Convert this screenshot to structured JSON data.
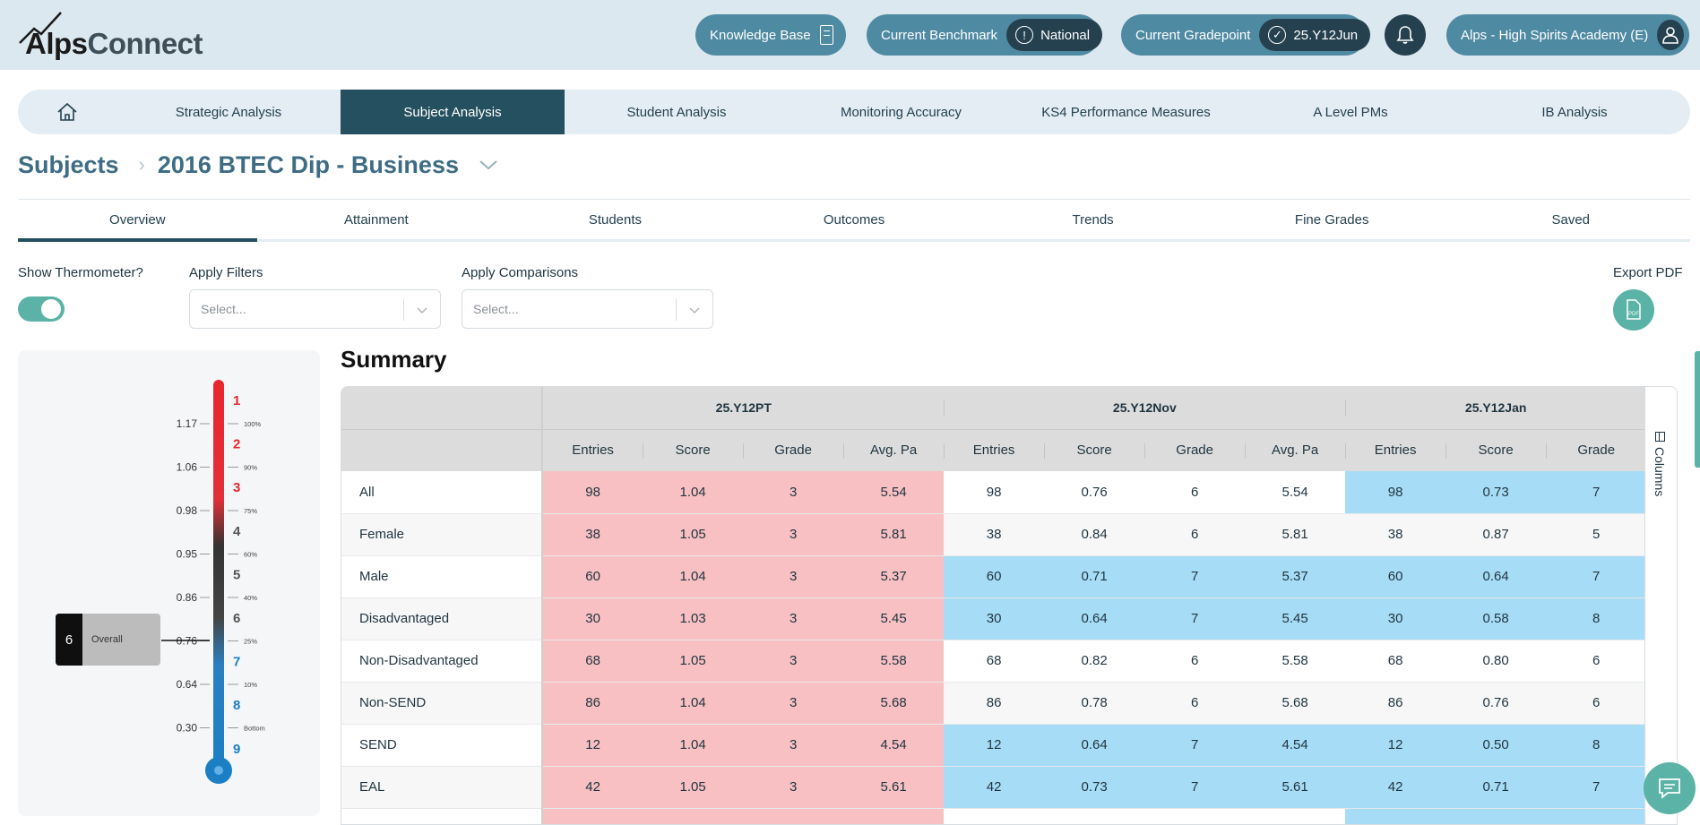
{
  "header": {
    "logo": {
      "alps": "Alps",
      "connect": "Connect"
    },
    "knowledge_base": "Knowledge Base",
    "benchmark_label": "Current Benchmark",
    "benchmark_value": "National",
    "gradepoint_label": "Current Gradepoint",
    "gradepoint_value": "25.Y12Jun",
    "school": "Alps - High Spirits Academy (E)"
  },
  "nav": {
    "items": [
      {
        "label": "Strategic Analysis"
      },
      {
        "label": "Subject Analysis"
      },
      {
        "label": "Student Analysis"
      },
      {
        "label": "Monitoring Accuracy"
      },
      {
        "label": "KS4 Performance Measures"
      },
      {
        "label": "A Level PMs"
      },
      {
        "label": "IB Analysis"
      }
    ],
    "active": "Subject Analysis"
  },
  "breadcrumb": {
    "root": "Subjects",
    "current": "2016 BTEC Dip - Business"
  },
  "subtabs": [
    "Overview",
    "Attainment",
    "Students",
    "Outcomes",
    "Trends",
    "Fine Grades",
    "Saved"
  ],
  "filters": {
    "thermometer_label": "Show Thermometer?",
    "thermometer_on": true,
    "apply_filters_label": "Apply Filters",
    "apply_filters_placeholder": "Select...",
    "apply_comparisons_label": "Apply Comparisons",
    "apply_comparisons_placeholder": "Select...",
    "export_label": "Export PDF",
    "pdf_icon_text": "PDF"
  },
  "thermometer": {
    "scale_values": [
      "1.17",
      "1.06",
      "0.98",
      "0.95",
      "0.86",
      "0.76",
      "0.64",
      "0.30"
    ],
    "percent_labels": [
      "100%",
      "90%",
      "75%",
      "60%",
      "40%",
      "25%",
      "10%",
      "Bottom"
    ],
    "grade_labels": [
      "1",
      "2",
      "3",
      "4",
      "5",
      "6",
      "7",
      "8",
      "9"
    ],
    "grade_colors": [
      "#e8262e",
      "#e8262e",
      "#e8262e",
      "#555555",
      "#555555",
      "#555555",
      "#1c7fc4",
      "#1c7fc4",
      "#1c7fc4"
    ],
    "overall_grade": "6",
    "overall_label": "Overall"
  },
  "summary": {
    "title": "Summary",
    "columns_label": "Columns",
    "groups": [
      "25.Y12PT",
      "25.Y12Nov",
      "25.Y12Jan"
    ],
    "subheaders": [
      "Entries",
      "Score",
      "Grade",
      "Avg. Pa",
      "Entries",
      "Score",
      "Grade",
      "Avg. Pa",
      "Entries",
      "Score",
      "Grade"
    ],
    "rows": [
      {
        "label": "All",
        "values": [
          "98",
          "1.04",
          "3",
          "5.54",
          "98",
          "0.76",
          "6",
          "5.54",
          "98",
          "0.73",
          "7"
        ]
      },
      {
        "label": "Female",
        "values": [
          "38",
          "1.05",
          "3",
          "5.81",
          "38",
          "0.84",
          "6",
          "5.81",
          "38",
          "0.87",
          "5"
        ]
      },
      {
        "label": "Male",
        "values": [
          "60",
          "1.04",
          "3",
          "5.37",
          "60",
          "0.71",
          "7",
          "5.37",
          "60",
          "0.64",
          "7"
        ]
      },
      {
        "label": "Disadvantaged",
        "values": [
          "30",
          "1.03",
          "3",
          "5.45",
          "30",
          "0.64",
          "7",
          "5.45",
          "30",
          "0.58",
          "8"
        ]
      },
      {
        "label": "Non-Disadvantaged",
        "values": [
          "68",
          "1.05",
          "3",
          "5.58",
          "68",
          "0.82",
          "6",
          "5.58",
          "68",
          "0.80",
          "6"
        ]
      },
      {
        "label": "Non-SEND",
        "values": [
          "86",
          "1.04",
          "3",
          "5.68",
          "86",
          "0.78",
          "6",
          "5.68",
          "86",
          "0.76",
          "6"
        ]
      },
      {
        "label": "SEND",
        "values": [
          "12",
          "1.04",
          "3",
          "4.54",
          "12",
          "0.64",
          "7",
          "4.54",
          "12",
          "0.50",
          "8"
        ]
      },
      {
        "label": "EAL",
        "values": [
          "42",
          "1.05",
          "3",
          "5.61",
          "42",
          "0.73",
          "7",
          "5.61",
          "42",
          "0.71",
          "7"
        ]
      },
      {
        "label": "",
        "values": [
          "",
          "",
          "",
          "",
          "",
          "",
          "",
          "",
          "",
          "",
          ""
        ]
      }
    ],
    "colors": {
      "red": "#f8c0c2",
      "blue": "#a6dcf5",
      "white": "#ffffff"
    }
  }
}
